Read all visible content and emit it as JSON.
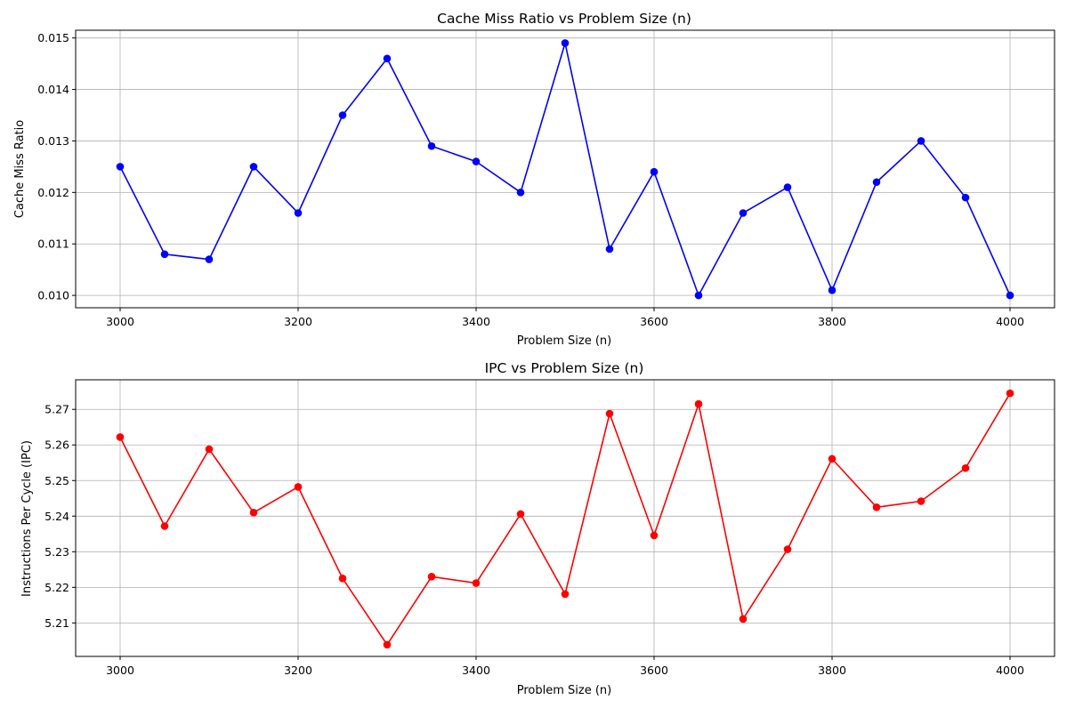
{
  "chart_data": [
    {
      "type": "line",
      "title": "Cache Miss Ratio vs Problem Size (n)",
      "xlabel": "Problem Size (n)",
      "ylabel": "Cache Miss Ratio",
      "xlim": [
        2950,
        4050
      ],
      "ylim": [
        0.00976,
        0.01515
      ],
      "xticks": [
        3000,
        3200,
        3400,
        3600,
        3800,
        4000
      ],
      "xtick_labels": [
        "3000",
        "3200",
        "3400",
        "3600",
        "3800",
        "4000"
      ],
      "yticks": [
        0.01,
        0.011,
        0.012,
        0.013,
        0.014,
        0.015
      ],
      "ytick_labels": [
        "0.010",
        "0.011",
        "0.012",
        "0.013",
        "0.014",
        "0.015"
      ],
      "grid": true,
      "series": [
        {
          "color": "#0000ff",
          "marker": "circle",
          "x": [
            3000,
            3050,
            3100,
            3150,
            3200,
            3250,
            3300,
            3350,
            3400,
            3450,
            3500,
            3550,
            3600,
            3650,
            3700,
            3750,
            3800,
            3850,
            3900,
            3950,
            4000
          ],
          "y": [
            0.0125,
            0.0108,
            0.0107,
            0.0125,
            0.0116,
            0.0135,
            0.0146,
            0.0129,
            0.0126,
            0.012,
            0.0149,
            0.0109,
            0.0124,
            0.01,
            0.0116,
            0.0121,
            0.0101,
            0.0122,
            0.013,
            0.0119,
            0.01
          ]
        }
      ]
    },
    {
      "type": "line",
      "title": "IPC vs Problem Size (n)",
      "xlabel": "Problem Size (n)",
      "ylabel": "Instructions Per Cycle (IPC)",
      "xlim": [
        2950,
        4050
      ],
      "ylim": [
        5.2006,
        5.2783
      ],
      "xticks": [
        3000,
        3200,
        3400,
        3600,
        3800,
        4000
      ],
      "xtick_labels": [
        "3000",
        "3200",
        "3400",
        "3600",
        "3800",
        "4000"
      ],
      "yticks": [
        5.21,
        5.22,
        5.23,
        5.24,
        5.25,
        5.26,
        5.27
      ],
      "ytick_labels": [
        "5.21",
        "5.22",
        "5.23",
        "5.24",
        "5.25",
        "5.26",
        "5.27"
      ],
      "grid": true,
      "series": [
        {
          "color": "#ff0000",
          "marker": "circle",
          "x": [
            3000,
            3050,
            3100,
            3150,
            3200,
            3250,
            3300,
            3350,
            3400,
            3450,
            3500,
            3550,
            3600,
            3650,
            3700,
            3750,
            3800,
            3850,
            3900,
            3950,
            4000
          ],
          "y": [
            5.2622,
            5.2372,
            5.2588,
            5.241,
            5.2482,
            5.2225,
            5.2039,
            5.223,
            5.2212,
            5.2406,
            5.2181,
            5.2688,
            5.2346,
            5.2715,
            5.2111,
            5.2307,
            5.2561,
            5.2425,
            5.2442,
            5.2535,
            5.2745
          ]
        }
      ]
    }
  ]
}
